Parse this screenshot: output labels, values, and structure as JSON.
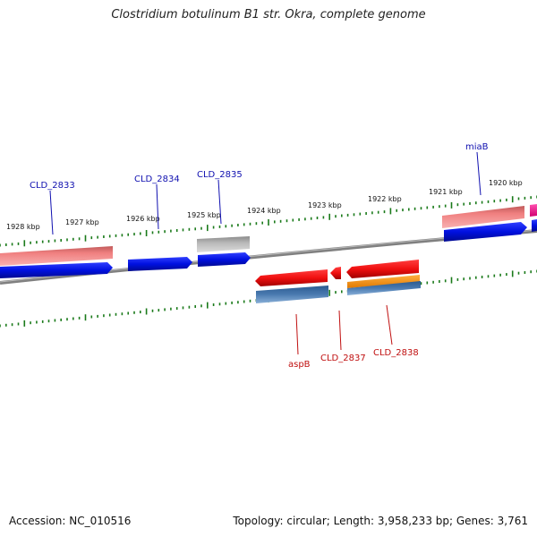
{
  "title": "Clostridium botulinum B1 str. Okra, complete genome",
  "footer": {
    "accession": "Accession: NC_010516",
    "summary": "Topology: circular; Length: 3,958,233 bp; Genes: 3,761"
  },
  "scale_labels": [
    "1928 kbp",
    "1927 kbp",
    "1926 kbp",
    "1925 kbp",
    "1924 kbp",
    "1923 kbp",
    "1922 kbp",
    "1921 kbp",
    "1920 kbp"
  ],
  "gene_labels": {
    "top": [
      "CLD_2833",
      "CLD_2834",
      "CLD_2835",
      "miaB"
    ],
    "bottom": [
      "aspB",
      "CLD_2837",
      "CLD_2838"
    ]
  },
  "colors": {
    "top_label": "#1010b0",
    "bottom_label": "#c01010",
    "tick": "#1a7a1a",
    "backbone": "#808080",
    "blue": "#0010e0",
    "red": "#f01010",
    "salmon": "#f08080",
    "gray": "#b0b0b0",
    "steel": "#4a7ab0",
    "orange": "#ff9a10",
    "magenta": "#ff2090"
  }
}
